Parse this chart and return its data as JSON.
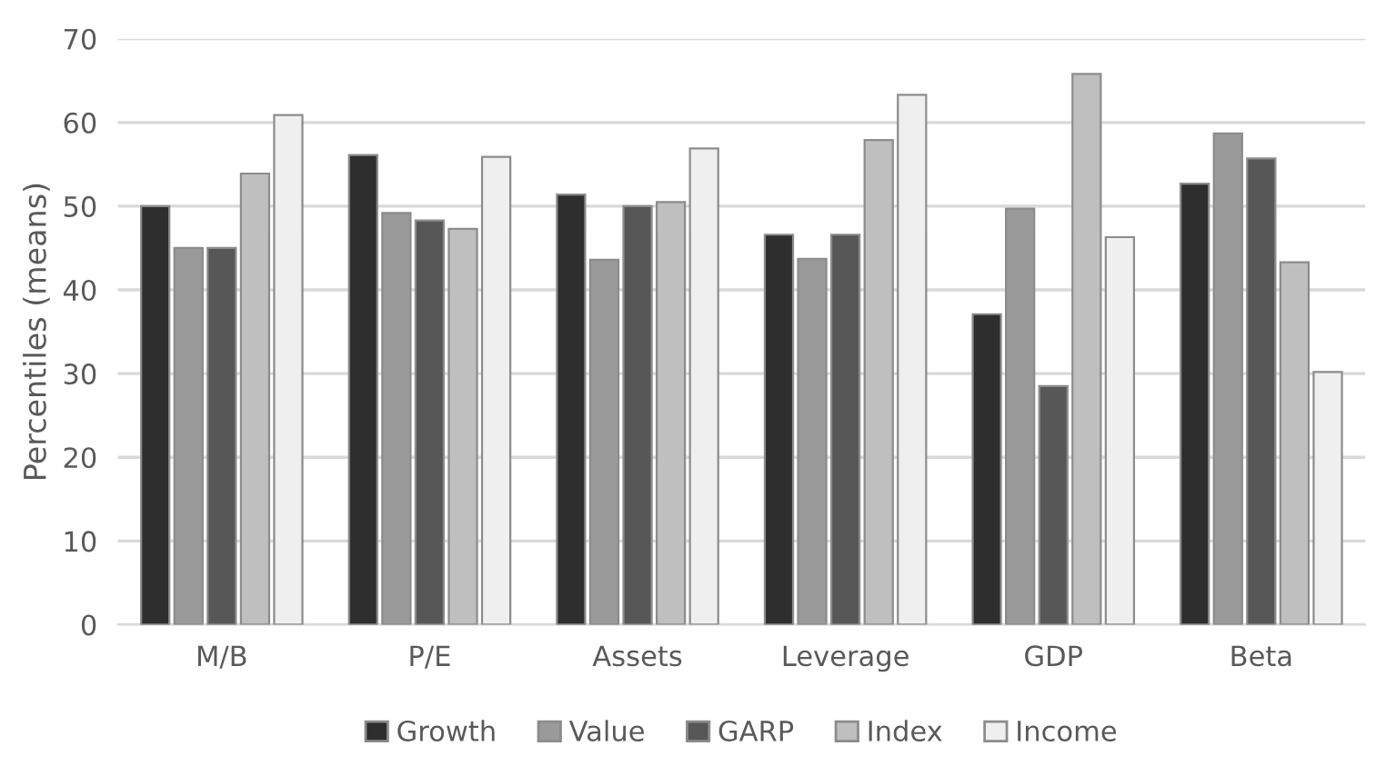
{
  "chart_data": {
    "type": "bar",
    "ylabel": "Percentiles (means)",
    "categories": [
      "M/B",
      "P/E",
      "Assets",
      "Leverage",
      "GDP",
      "Beta"
    ],
    "series": [
      {
        "name": "Growth",
        "color": "#2e2e2e",
        "values": [
          50,
          56.1,
          51.4,
          46.6,
          37.1,
          52.7
        ]
      },
      {
        "name": "Value",
        "color": "#9a9a9a",
        "values": [
          45,
          49.2,
          43.6,
          43.7,
          49.7,
          58.7
        ]
      },
      {
        "name": "GARP",
        "color": "#575757",
        "values": [
          45,
          48.3,
          50,
          46.6,
          28.5,
          55.7
        ]
      },
      {
        "name": "Index",
        "color": "#bfbfbf",
        "values": [
          53.9,
          47.3,
          50.5,
          57.9,
          65.8,
          43.3
        ]
      },
      {
        "name": "Income",
        "color": "#efefef",
        "values": [
          60.9,
          55.9,
          56.9,
          63.3,
          46.3,
          30.2
        ]
      }
    ],
    "ylim": [
      0,
      70
    ],
    "yticks": [
      0,
      10,
      20,
      30,
      40,
      50,
      60,
      70
    ],
    "grid": "y",
    "legend": "bottom"
  }
}
